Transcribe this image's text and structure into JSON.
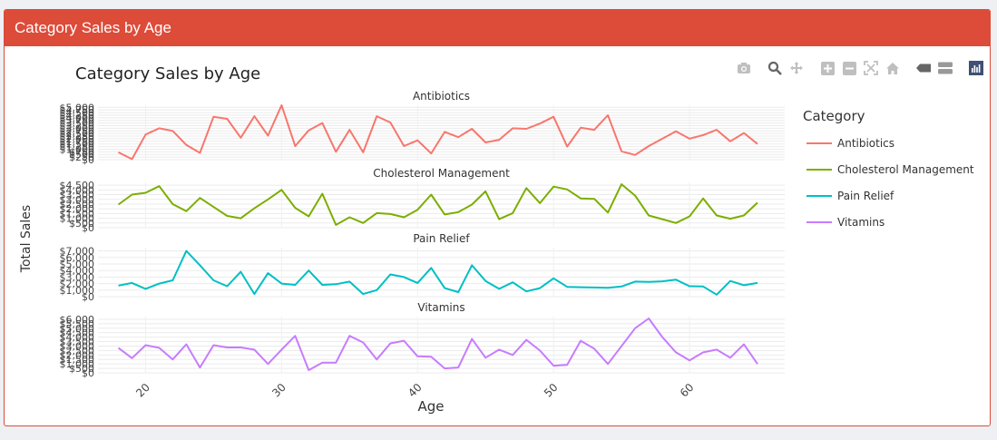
{
  "panel": {
    "title": "Category Sales by Age"
  },
  "modebar": {
    "icons": [
      "camera-icon",
      "zoom-icon",
      "pan-icon",
      "zoom-in-icon",
      "zoom-out-icon",
      "autoscale-icon",
      "reset-axes-icon",
      "hover-closest-icon",
      "hover-compare-icon",
      "plotly-logo-icon"
    ]
  },
  "chart_data": {
    "type": "line",
    "title": "Category Sales by Age",
    "xlabel": "Age",
    "ylabel": "Total Sales",
    "x_ticks": [
      20,
      30,
      40,
      50,
      60
    ],
    "xlim": [
      16.5,
      67
    ],
    "legend": {
      "title": "Category",
      "placement": "right"
    },
    "grid": true,
    "x": [
      18,
      19,
      20,
      21,
      22,
      23,
      24,
      25,
      26,
      27,
      28,
      29,
      30,
      31,
      32,
      33,
      34,
      35,
      36,
      37,
      38,
      39,
      40,
      41,
      42,
      43,
      44,
      45,
      46,
      47,
      48,
      49,
      50,
      51,
      52,
      53,
      54,
      55,
      56,
      57,
      58,
      59,
      60,
      61,
      62,
      63,
      64,
      65
    ],
    "panels": [
      {
        "name": "Antibiotics",
        "color": "#f8766d",
        "ylim": [
          0,
          5200
        ],
        "tick_labels": [
          "$0",
          "$250",
          "$500",
          "$750",
          "$1,000",
          "$1,250",
          "$1,500",
          "$1,750",
          "$2,000",
          "$2,250",
          "$2,500",
          "$2,750",
          "$3,000",
          "$3,250",
          "$3,500",
          "$3,750",
          "$4,000",
          "$4,250",
          "$4,500",
          "$4,750",
          "$5,000"
        ],
        "tick_values": [
          0,
          250,
          500,
          750,
          1000,
          1250,
          1500,
          1750,
          2000,
          2250,
          2500,
          2750,
          3000,
          3250,
          3500,
          3750,
          4000,
          4250,
          4500,
          4750,
          5000
        ],
        "values": [
          700,
          50,
          2400,
          3000,
          2750,
          1400,
          650,
          4100,
          3900,
          2100,
          4150,
          2300,
          5200,
          1300,
          2800,
          3500,
          750,
          2850,
          700,
          4150,
          3550,
          1300,
          1850,
          600,
          2650,
          2150,
          2950,
          1650,
          1900,
          3000,
          2950,
          3450,
          4100,
          1250,
          3050,
          2850,
          4250,
          800,
          450,
          1300,
          2000,
          2700,
          2000,
          2350,
          2850,
          1750,
          2550,
          1500
        ]
      },
      {
        "name": "Cholesterol Management",
        "color": "#7cae00",
        "ylim": [
          0,
          4800
        ],
        "tick_labels": [
          "$0",
          "$500",
          "$1,000",
          "$1,500",
          "$2,000",
          "$2,500",
          "$3,000",
          "$3,500",
          "$4,000",
          "$4,500"
        ],
        "tick_values": [
          0,
          500,
          1000,
          1500,
          2000,
          2500,
          3000,
          3500,
          4000,
          4500
        ],
        "values": [
          2450,
          3500,
          3700,
          4400,
          2500,
          1750,
          3150,
          2200,
          1250,
          1000,
          2050,
          3000,
          4000,
          2100,
          1200,
          3600,
          300,
          1100,
          500,
          1550,
          1450,
          1100,
          1900,
          3500,
          1400,
          1650,
          2450,
          3850,
          900,
          1550,
          4200,
          2600,
          4350,
          4050,
          3100,
          3050,
          1600,
          4600,
          3400,
          1300,
          900,
          500,
          1200,
          3100,
          1300,
          950,
          1300,
          2650
        ]
      },
      {
        "name": "Pain Relief",
        "color": "#00bfc4",
        "ylim": [
          0,
          7500
        ],
        "tick_labels": [
          "$0",
          "$1,000",
          "$2,000",
          "$3,000",
          "$4,000",
          "$5,000",
          "$6,000",
          "$7,000"
        ],
        "tick_values": [
          0,
          1000,
          2000,
          3000,
          4000,
          5000,
          6000,
          7000
        ],
        "values": [
          1700,
          2100,
          1200,
          2000,
          2500,
          7000,
          4800,
          2500,
          1600,
          3800,
          400,
          3600,
          2000,
          1800,
          4000,
          1800,
          1900,
          2300,
          400,
          1000,
          3400,
          3000,
          2100,
          4400,
          1300,
          700,
          4800,
          2400,
          1200,
          2200,
          800,
          1300,
          2800,
          1500,
          1450,
          1400,
          1350,
          1550,
          2300,
          2250,
          2350,
          2600,
          1600,
          1550,
          300,
          2400,
          1750,
          2100
        ]
      },
      {
        "name": "Vitamins",
        "color": "#c77cff",
        "ylim": [
          0,
          6300
        ],
        "tick_labels": [
          "$0",
          "$500",
          "$1,000",
          "$1,500",
          "$2,000",
          "$2,500",
          "$3,000",
          "$3,500",
          "$4,000",
          "$4,500",
          "$5,000",
          "$5,500",
          "$6,000"
        ],
        "tick_values": [
          0,
          500,
          1000,
          1500,
          2000,
          2500,
          3000,
          3500,
          4000,
          4500,
          5000,
          5500,
          6000
        ],
        "values": [
          2800,
          1650,
          3100,
          2800,
          1500,
          3200,
          600,
          3100,
          2850,
          2850,
          2600,
          1000,
          2600,
          4150,
          300,
          1150,
          1150,
          4150,
          3400,
          1500,
          3300,
          3600,
          1850,
          1800,
          500,
          600,
          3800,
          1700,
          2600,
          2000,
          3700,
          2500,
          800,
          900,
          3600,
          2700,
          1000,
          3000,
          5000,
          6100,
          4000,
          2300,
          1400,
          2300,
          2600,
          1700,
          3200,
          1000
        ]
      }
    ]
  }
}
